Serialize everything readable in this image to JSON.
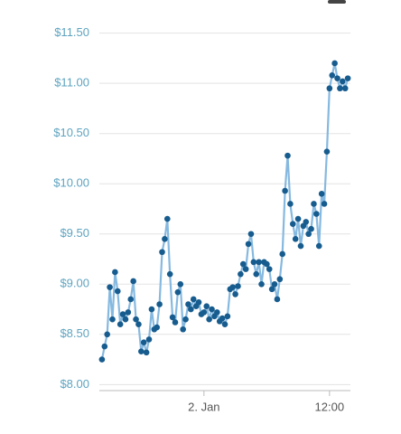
{
  "chart_data": {
    "type": "line",
    "x": [
      -9.75,
      -9.5,
      -9.25,
      -9,
      -8.75,
      -8.5,
      -8.25,
      -8,
      -7.75,
      -7.5,
      -7.25,
      -7,
      -6.75,
      -6.5,
      -6.25,
      -6,
      -5.75,
      -5.5,
      -5.25,
      -5,
      -4.75,
      -4.5,
      -4.25,
      -4,
      -3.75,
      -3.5,
      -3.25,
      -3,
      -2.75,
      -2.5,
      -2.25,
      -2,
      -1.75,
      -1.5,
      -1.25,
      -1,
      -0.75,
      -0.5,
      -0.25,
      0,
      0.25,
      0.5,
      0.75,
      1,
      1.25,
      1.5,
      1.75,
      2,
      2.25,
      2.5,
      2.75,
      3,
      3.25,
      3.5,
      3.75,
      4,
      4.25,
      4.5,
      4.75,
      5,
      5.25,
      5.5,
      5.75,
      6,
      6.25,
      6.5,
      6.75,
      7,
      7.25,
      7.5,
      7.75,
      8,
      8.25,
      8.5,
      8.75,
      9,
      9.25,
      9.5,
      9.75,
      10,
      10.25,
      10.5,
      10.75,
      11,
      11.25,
      11.5,
      11.75,
      12,
      12.25,
      12.5,
      12.75,
      13,
      13.25,
      13.5,
      13.75
    ],
    "series": [
      {
        "line_color": "#86b9e0",
        "color": "#175c8e",
        "values": [
          8.25,
          8.38,
          8.5,
          8.97,
          8.65,
          9.12,
          8.93,
          8.6,
          8.7,
          8.65,
          8.72,
          8.85,
          9.03,
          8.65,
          8.6,
          8.33,
          8.42,
          8.32,
          8.45,
          8.75,
          8.55,
          8.57,
          8.8,
          9.32,
          9.45,
          9.65,
          9.1,
          8.67,
          8.62,
          8.92,
          9.0,
          8.55,
          8.65,
          8.8,
          8.75,
          8.85,
          8.78,
          8.82,
          8.7,
          8.72,
          8.78,
          8.65,
          8.75,
          8.68,
          8.72,
          8.63,
          8.66,
          8.6,
          8.68,
          8.95,
          8.97,
          8.9,
          8.98,
          9.1,
          9.2,
          9.15,
          9.4,
          9.5,
          9.22,
          9.1,
          9.22,
          9.0,
          9.22,
          9.2,
          9.15,
          8.95,
          9.0,
          8.85,
          9.05,
          9.3,
          9.93,
          10.28,
          9.8,
          9.6,
          9.45,
          9.65,
          9.38,
          9.58,
          9.62,
          9.5,
          9.55,
          9.8,
          9.7,
          9.38,
          9.9,
          9.8,
          10.32,
          10.95,
          11.08,
          11.2,
          11.05,
          10.95,
          11.02,
          10.95,
          11.05
        ]
      }
    ],
    "xlim": [
      -10,
      14
    ],
    "xticks": [
      {
        "value": 0,
        "label": "2. Jan"
      },
      {
        "value": 12,
        "label": "12:00"
      }
    ],
    "ylim": [
      7.94,
      11.65
    ],
    "yticks": [
      {
        "value": 8,
        "label": "$8.00"
      },
      {
        "value": 8.5,
        "label": "$8.50"
      },
      {
        "value": 9,
        "label": "$9.00"
      },
      {
        "value": 9.5,
        "label": "$9.50"
      },
      {
        "value": 10,
        "label": "$10.00"
      },
      {
        "value": 10.5,
        "label": "$10.50"
      },
      {
        "value": 11,
        "label": "$11.00"
      },
      {
        "value": 11.5,
        "label": "$11.50"
      }
    ],
    "grid": true
  }
}
